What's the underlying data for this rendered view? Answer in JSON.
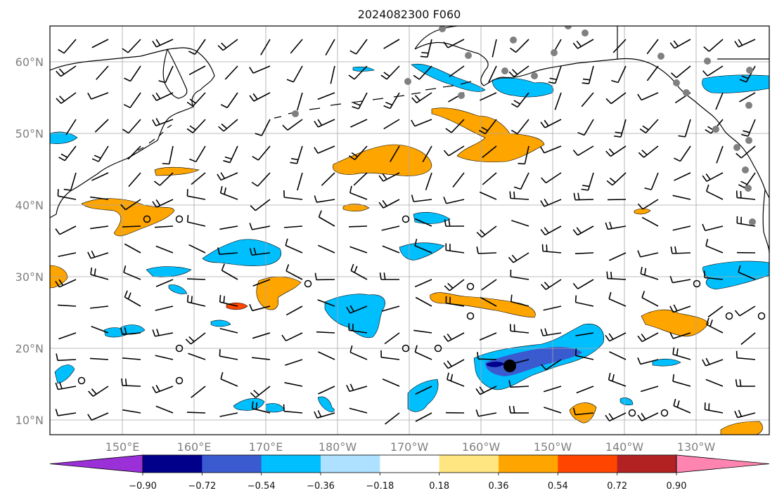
{
  "title": "2024082300 F060",
  "map": {
    "lat_labels": [
      "60°N",
      "50°N",
      "40°N",
      "30°N",
      "20°N",
      "10°N"
    ],
    "lon_labels": [
      "150°E",
      "160°E",
      "170°E",
      "180°W",
      "170°W",
      "160°W",
      "150°W",
      "140°W",
      "130°W"
    ],
    "colors": {
      "coast": "#000000",
      "grid": "#a6a6a6",
      "barb": "#000000",
      "station": "#808080"
    }
  },
  "colorbar": {
    "colors": [
      "#9b30d9",
      "#00008b",
      "#3a5acf",
      "#00bfff",
      "#aee0ff",
      "#ffffff",
      "#ffe680",
      "#ffa500",
      "#ff4500",
      "#b22222",
      "#ff85b0"
    ],
    "tick_labels": [
      "−0.90",
      "−0.72",
      "−0.54",
      "−0.36",
      "−0.18",
      "0.18",
      "0.36",
      "0.54",
      "0.72",
      "0.90"
    ],
    "extend": "both"
  }
}
